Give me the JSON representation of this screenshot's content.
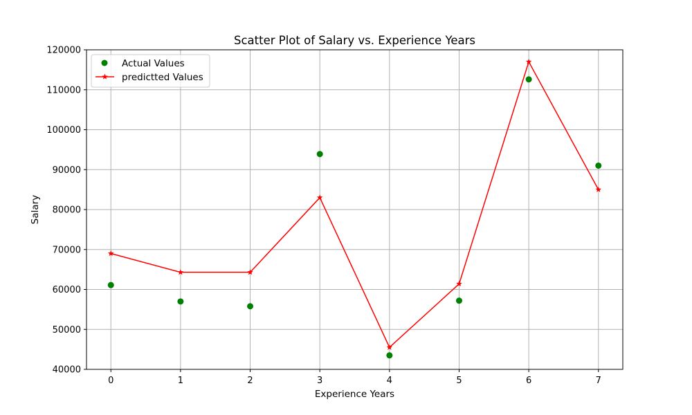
{
  "chart_data": {
    "type": "scatter",
    "title": "Scatter Plot of Salary vs. Experience Years",
    "xlabel": "Experience Years",
    "ylabel": "Salary",
    "xlim": [
      -0.35,
      7.35
    ],
    "ylim": [
      40000,
      120000
    ],
    "x_ticks": [
      0,
      1,
      2,
      3,
      4,
      5,
      6,
      7
    ],
    "y_ticks": [
      40000,
      50000,
      60000,
      70000,
      80000,
      90000,
      100000,
      110000,
      120000
    ],
    "grid": true,
    "legend_position": "top-left",
    "series": [
      {
        "name": "Actual Values",
        "type": "scatter",
        "color": "#008000",
        "x": [
          0,
          1,
          2,
          3,
          4,
          5,
          6,
          7
        ],
        "y": [
          61100,
          57000,
          55800,
          93900,
          43500,
          57200,
          112600,
          91000
        ]
      },
      {
        "name": "predictted Values",
        "type": "line",
        "marker": "star",
        "color": "#ff0000",
        "x": [
          0,
          1,
          2,
          3,
          4,
          5,
          6,
          7
        ],
        "y": [
          69000,
          64300,
          64300,
          83000,
          45500,
          61400,
          117000,
          85000
        ]
      }
    ]
  }
}
